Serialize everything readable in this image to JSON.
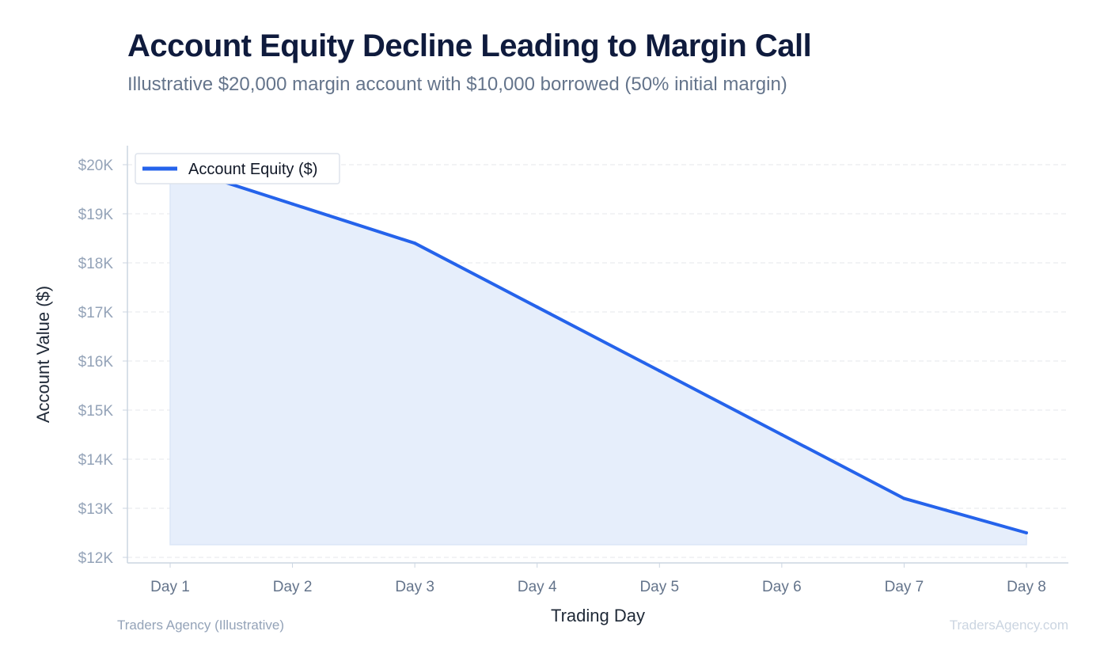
{
  "header": {
    "title": "Account Equity Decline Leading to Margin Call",
    "subtitle": "Illustrative $20,000 margin account with $10,000 borrowed (50% initial margin)"
  },
  "footer": {
    "source": "Traders Agency (Illustrative)",
    "watermark": "TradersAgency.com"
  },
  "colors": {
    "line": "#2563eb",
    "fill": "#e6eefb",
    "grid": "#e5e7eb",
    "axis": "#cbd5e1",
    "tick_text": "#94a3b8",
    "x_tick_text": "#64748b",
    "label_text": "#1f2937"
  },
  "chart_data": {
    "type": "area",
    "xlabel": "Trading Day",
    "ylabel": "Account Value ($)",
    "categories": [
      "Day 1",
      "Day 2",
      "Day 3",
      "Day 4",
      "Day 5",
      "Day 6",
      "Day 7",
      "Day 8"
    ],
    "series": [
      {
        "name": "Account Equity ($)",
        "values": [
          20000,
          19200,
          18400,
          17100,
          15800,
          14500,
          13200,
          12500
        ]
      }
    ],
    "ylim": [
      12000,
      20000
    ],
    "yticks": [
      12000,
      13000,
      14000,
      15000,
      16000,
      17000,
      18000,
      19000,
      20000
    ],
    "ytick_labels": [
      "$12K",
      "$13K",
      "$14K",
      "$15K",
      "$16K",
      "$17K",
      "$18K",
      "$19K",
      "$20K"
    ],
    "grid": true,
    "legend_position": "top-left"
  }
}
